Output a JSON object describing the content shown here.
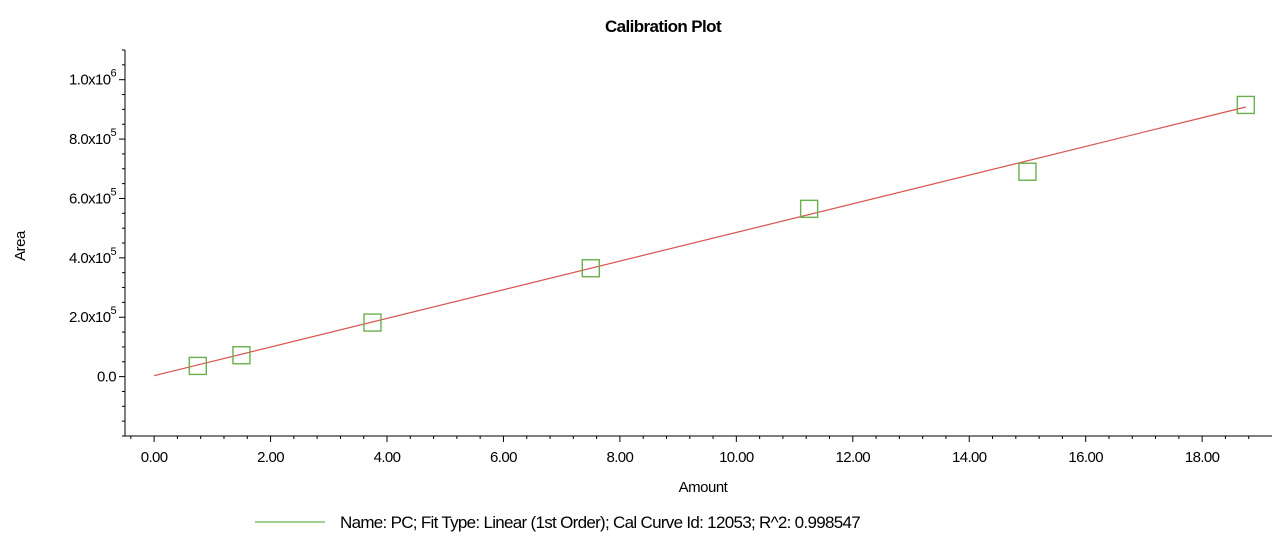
{
  "chart_data": {
    "type": "scatter",
    "title": "Calibration Plot",
    "xlabel": "Amount",
    "ylabel": "Area",
    "xlim": [
      -0.5,
      19.2
    ],
    "ylim": [
      -200000,
      1100000
    ],
    "x_ticks": [
      0,
      2,
      4,
      6,
      8,
      10,
      12,
      14,
      16,
      18
    ],
    "x_tick_labels": [
      "0.00",
      "2.00",
      "4.00",
      "6.00",
      "8.00",
      "10.00",
      "12.00",
      "14.00",
      "16.00",
      "18.00"
    ],
    "y_ticks": [
      0,
      200000,
      400000,
      600000,
      800000,
      1000000
    ],
    "y_tick_labels": [
      {
        "mantissa": "0.0",
        "exponent": ""
      },
      {
        "mantissa": "2.0x10",
        "exponent": "5"
      },
      {
        "mantissa": "4.0x10",
        "exponent": "5"
      },
      {
        "mantissa": "6.0x10",
        "exponent": "5"
      },
      {
        "mantissa": "8.0x10",
        "exponent": "5"
      },
      {
        "mantissa": "1.0x10",
        "exponent": "6"
      }
    ],
    "grid": false,
    "series": [
      {
        "kind": "points",
        "marker": "square-open",
        "color": "#6ab04c",
        "x": [
          0.75,
          1.5,
          3.75,
          7.5,
          11.25,
          15.0,
          18.75
        ],
        "y": [
          36000,
          72000,
          182000,
          365000,
          565000,
          690000,
          915000
        ]
      },
      {
        "kind": "fit-line",
        "color": "#d9534f",
        "x": [
          0.0,
          18.75
        ],
        "y": [
          3000,
          908000
        ]
      }
    ],
    "legend": {
      "placement": "bottom-center",
      "swatch_color": "#6ab04c",
      "text": "Name: PC;  Fit Type: Linear (1st Order);  Cal Curve Id: 12053;  R^2: 0.998547"
    }
  }
}
